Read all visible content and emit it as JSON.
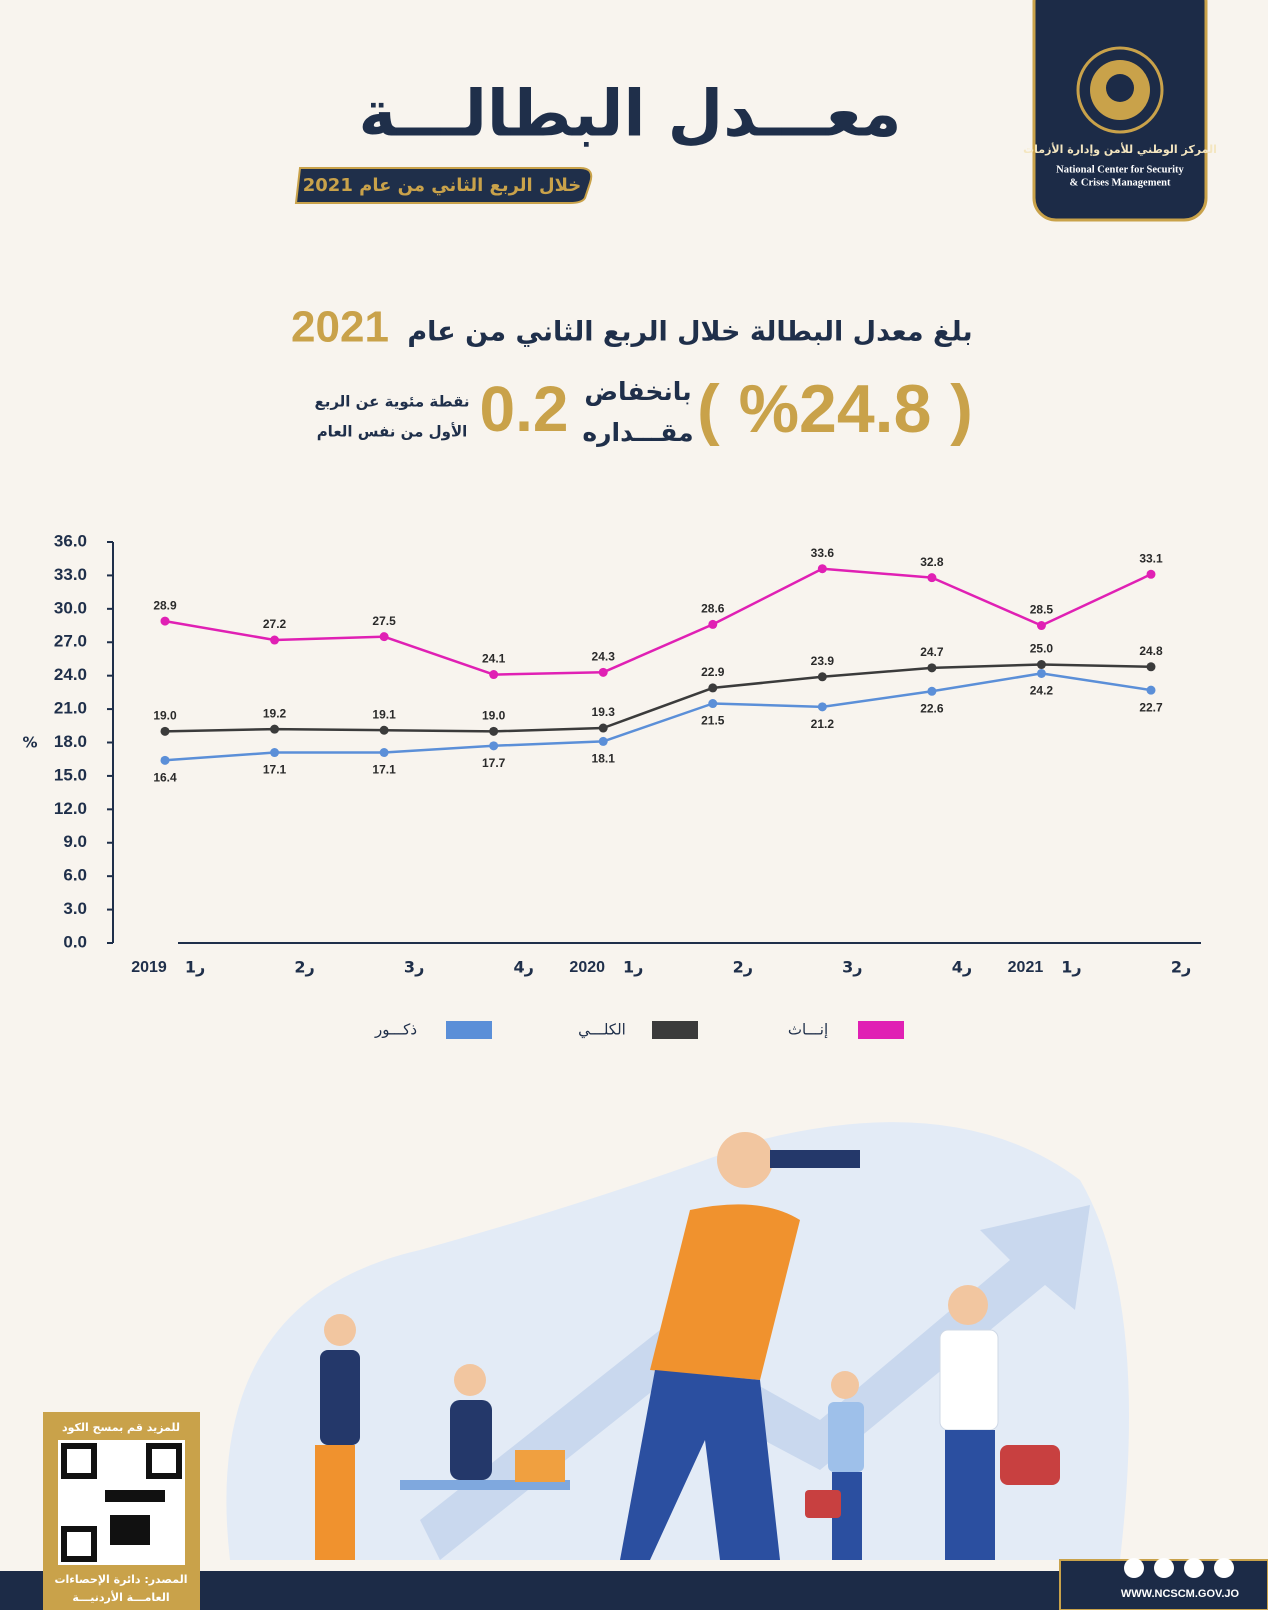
{
  "logo": {
    "arabic": "المركز الوطني للأمن وإدارة الأزمات",
    "english_1": "National Center for Security",
    "english_2": "&  Crises Management"
  },
  "header": {
    "title": "معـــدل البطالـــة",
    "subtitle": "خلال الربع الثاني من عام 2021"
  },
  "summary": {
    "text": "بلغ معدل البطالة خلال الربع الثاني من عام",
    "year": "2021",
    "rate": "( %24.8 )",
    "change_word_1": "بانخفاض",
    "change_word_2": "مقـــداره",
    "change": "0.2",
    "note_1": "نقطة مئوية عن الربع",
    "note_2": "الأول من نفس العام"
  },
  "chart_data": {
    "type": "line",
    "y_label": "%",
    "categories": [
      "ر1",
      "ر2",
      "ر3",
      "ر4",
      "ر1",
      "ر2",
      "ر3",
      "ر4",
      "ر1",
      "ر2"
    ],
    "years": [
      "2019",
      null,
      null,
      null,
      "2020",
      null,
      null,
      null,
      "2021",
      null
    ],
    "ylim": [
      0,
      36
    ],
    "yticks": [
      {
        "value": 0,
        "label": "0.0"
      },
      {
        "value": 3,
        "label": "3.0"
      },
      {
        "value": 6,
        "label": "6.0"
      },
      {
        "value": 9,
        "label": "9.0"
      },
      {
        "value": 12,
        "label": "12.0"
      },
      {
        "value": 15,
        "label": "15.0"
      },
      {
        "value": 18,
        "label": "18.0"
      },
      {
        "value": 21,
        "label": "21.0"
      },
      {
        "value": 24,
        "label": "24.0"
      },
      {
        "value": 27,
        "label": "27.0"
      },
      {
        "value": 30,
        "label": "30.0"
      },
      {
        "value": 33,
        "label": "33.0"
      },
      {
        "value": 36,
        "label": "36.0"
      }
    ],
    "grid": false,
    "series": [
      {
        "name": "إنـــاث",
        "color": "#e020b4",
        "values": [
          28.9,
          27.2,
          27.5,
          24.1,
          24.3,
          28.6,
          33.6,
          32.8,
          28.5,
          33.1
        ],
        "value_labels": [
          "28.9",
          "27.2",
          "27.5",
          "24.1",
          "24.3",
          "28.6",
          "33.6",
          "32.8",
          "28.5",
          "33.1"
        ]
      },
      {
        "name": "الكلـــي",
        "color": "#3b3b3b",
        "values": [
          19.0,
          19.2,
          19.1,
          19.0,
          19.3,
          22.9,
          23.9,
          24.7,
          25.0,
          24.8
        ],
        "value_labels": [
          "19.0",
          "19.2",
          "19.1",
          "19.0",
          "19.3",
          "22.9",
          "23.9",
          "24.7",
          "25.0",
          "24.8"
        ]
      },
      {
        "name": "ذكـــور",
        "color": "#5b8fd8",
        "values": [
          16.4,
          17.1,
          17.1,
          17.7,
          18.1,
          21.5,
          21.2,
          22.6,
          24.2,
          22.7
        ],
        "value_labels": [
          "16.4",
          "17.1",
          "17.1",
          "17.7",
          "18.1",
          "21.5",
          "21.2",
          "22.6",
          "24.2",
          "22.7"
        ]
      }
    ]
  },
  "footer": {
    "qr_caption": "للمزيد قم بمسح الكود",
    "source_1": "المصدر: دائرة الإحصاءات",
    "source_2": "العامـــة الأردنيـــة",
    "website": "WWW.NCSCM.GOV.JO"
  }
}
